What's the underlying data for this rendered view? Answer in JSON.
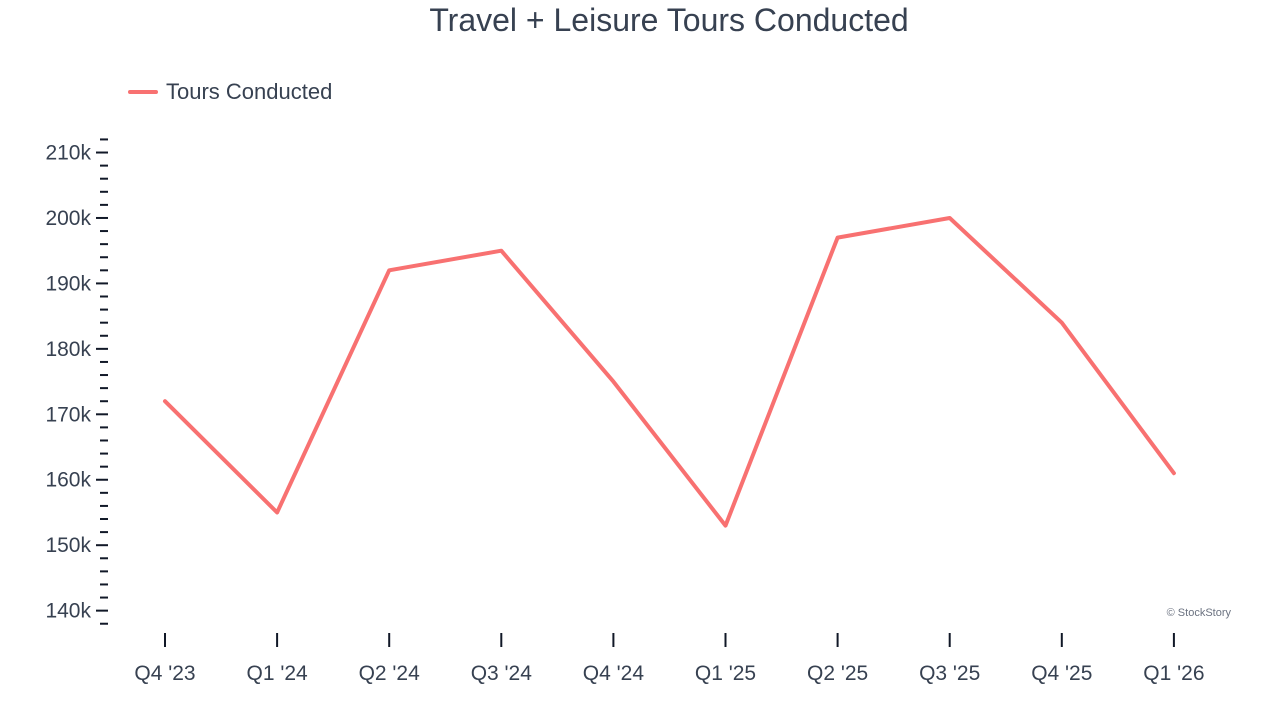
{
  "chart_data": {
    "type": "line",
    "title": "Travel + Leisure Tours Conducted",
    "xlabel": "",
    "ylabel": "",
    "categories": [
      "Q4 '23",
      "Q1 '24",
      "Q2 '24",
      "Q3 '24",
      "Q4 '24",
      "Q1 '25",
      "Q2 '25",
      "Q3 '25",
      "Q4 '25",
      "Q1 '26"
    ],
    "series": [
      {
        "name": "Tours Conducted",
        "color": "#f87171",
        "values": [
          172000,
          155000,
          192000,
          195000,
          175000,
          153000,
          197000,
          200000,
          184000,
          161000
        ]
      }
    ],
    "y_ticks": [
      140000,
      150000,
      160000,
      170000,
      180000,
      190000,
      200000,
      210000
    ],
    "y_tick_labels": [
      "140k",
      "150k",
      "160k",
      "170k",
      "180k",
      "190k",
      "200k",
      "210k"
    ],
    "ylim": [
      137500,
      213900
    ],
    "legend_position": "top-left",
    "grid": false
  },
  "watermark": "© StockStory"
}
